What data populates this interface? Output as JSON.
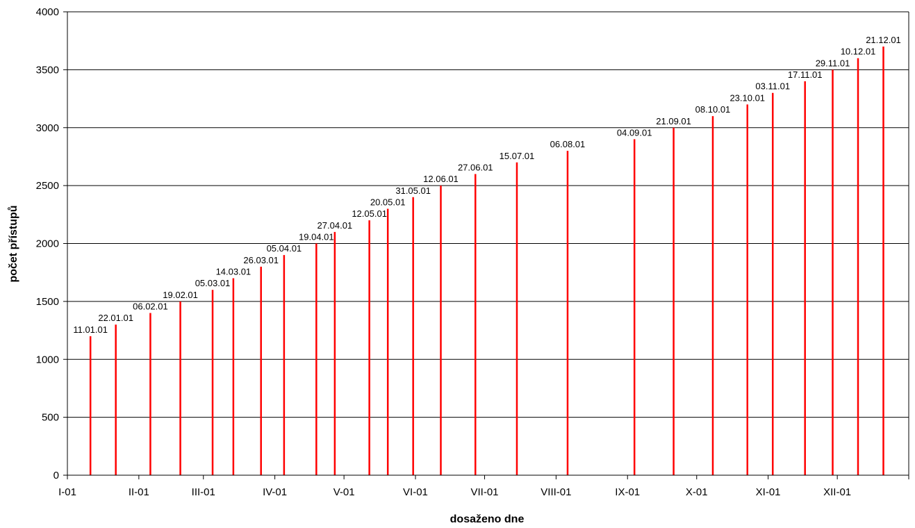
{
  "chart_data": {
    "type": "bar",
    "title": "",
    "xlabel": "dosaženo dne",
    "ylabel": "počet přístupů",
    "ylim": [
      0,
      4000
    ],
    "yticks": [
      0,
      500,
      1000,
      1500,
      2000,
      2500,
      3000,
      3500,
      4000
    ],
    "x_axis": {
      "type": "date",
      "range": [
        "2001-01-01",
        "2002-01-01"
      ],
      "month_labels": [
        "I-01",
        "II-01",
        "III-01",
        "IV-01",
        "V-01",
        "VI-01",
        "VII-01",
        "VIII-01",
        "IX-01",
        "X-01",
        "XI-01",
        "XII-01"
      ]
    },
    "grid": true,
    "bar_color": "#ff0000",
    "points": [
      {
        "date": "2001-01-11",
        "label": "11.01.01",
        "value": 1200
      },
      {
        "date": "2001-01-22",
        "label": "22.01.01",
        "value": 1300
      },
      {
        "date": "2001-02-06",
        "label": "06.02.01",
        "value": 1400
      },
      {
        "date": "2001-02-19",
        "label": "19.02.01",
        "value": 1500
      },
      {
        "date": "2001-03-05",
        "label": "05.03.01",
        "value": 1600
      },
      {
        "date": "2001-03-14",
        "label": "14.03.01",
        "value": 1700
      },
      {
        "date": "2001-03-26",
        "label": "26.03.01",
        "value": 1800
      },
      {
        "date": "2001-04-05",
        "label": "05.04.01",
        "value": 1900
      },
      {
        "date": "2001-04-19",
        "label": "19.04.01",
        "value": 2000
      },
      {
        "date": "2001-04-27",
        "label": "27.04.01",
        "value": 2100
      },
      {
        "date": "2001-05-12",
        "label": "12.05.01",
        "value": 2200
      },
      {
        "date": "2001-05-20",
        "label": "20.05.01",
        "value": 2300
      },
      {
        "date": "2001-05-31",
        "label": "31.05.01",
        "value": 2400
      },
      {
        "date": "2001-06-12",
        "label": "12.06.01",
        "value": 2500
      },
      {
        "date": "2001-06-27",
        "label": "27.06.01",
        "value": 2600
      },
      {
        "date": "2001-07-15",
        "label": "15.07.01",
        "value": 2700
      },
      {
        "date": "2001-08-06",
        "label": "06.08.01",
        "value": 2800
      },
      {
        "date": "2001-09-04",
        "label": "04.09.01",
        "value": 2900
      },
      {
        "date": "2001-09-21",
        "label": "21.09.01",
        "value": 3000
      },
      {
        "date": "2001-10-08",
        "label": "08.10.01",
        "value": 3100
      },
      {
        "date": "2001-10-23",
        "label": "23.10.01",
        "value": 3200
      },
      {
        "date": "2001-11-03",
        "label": "03.11.01",
        "value": 3300
      },
      {
        "date": "2001-11-17",
        "label": "17.11.01",
        "value": 3400
      },
      {
        "date": "2001-11-29",
        "label": "29.11.01",
        "value": 3500
      },
      {
        "date": "2001-12-10",
        "label": "10.12.01",
        "value": 3600
      },
      {
        "date": "2001-12-21",
        "label": "21.12.01",
        "value": 3700
      }
    ]
  }
}
